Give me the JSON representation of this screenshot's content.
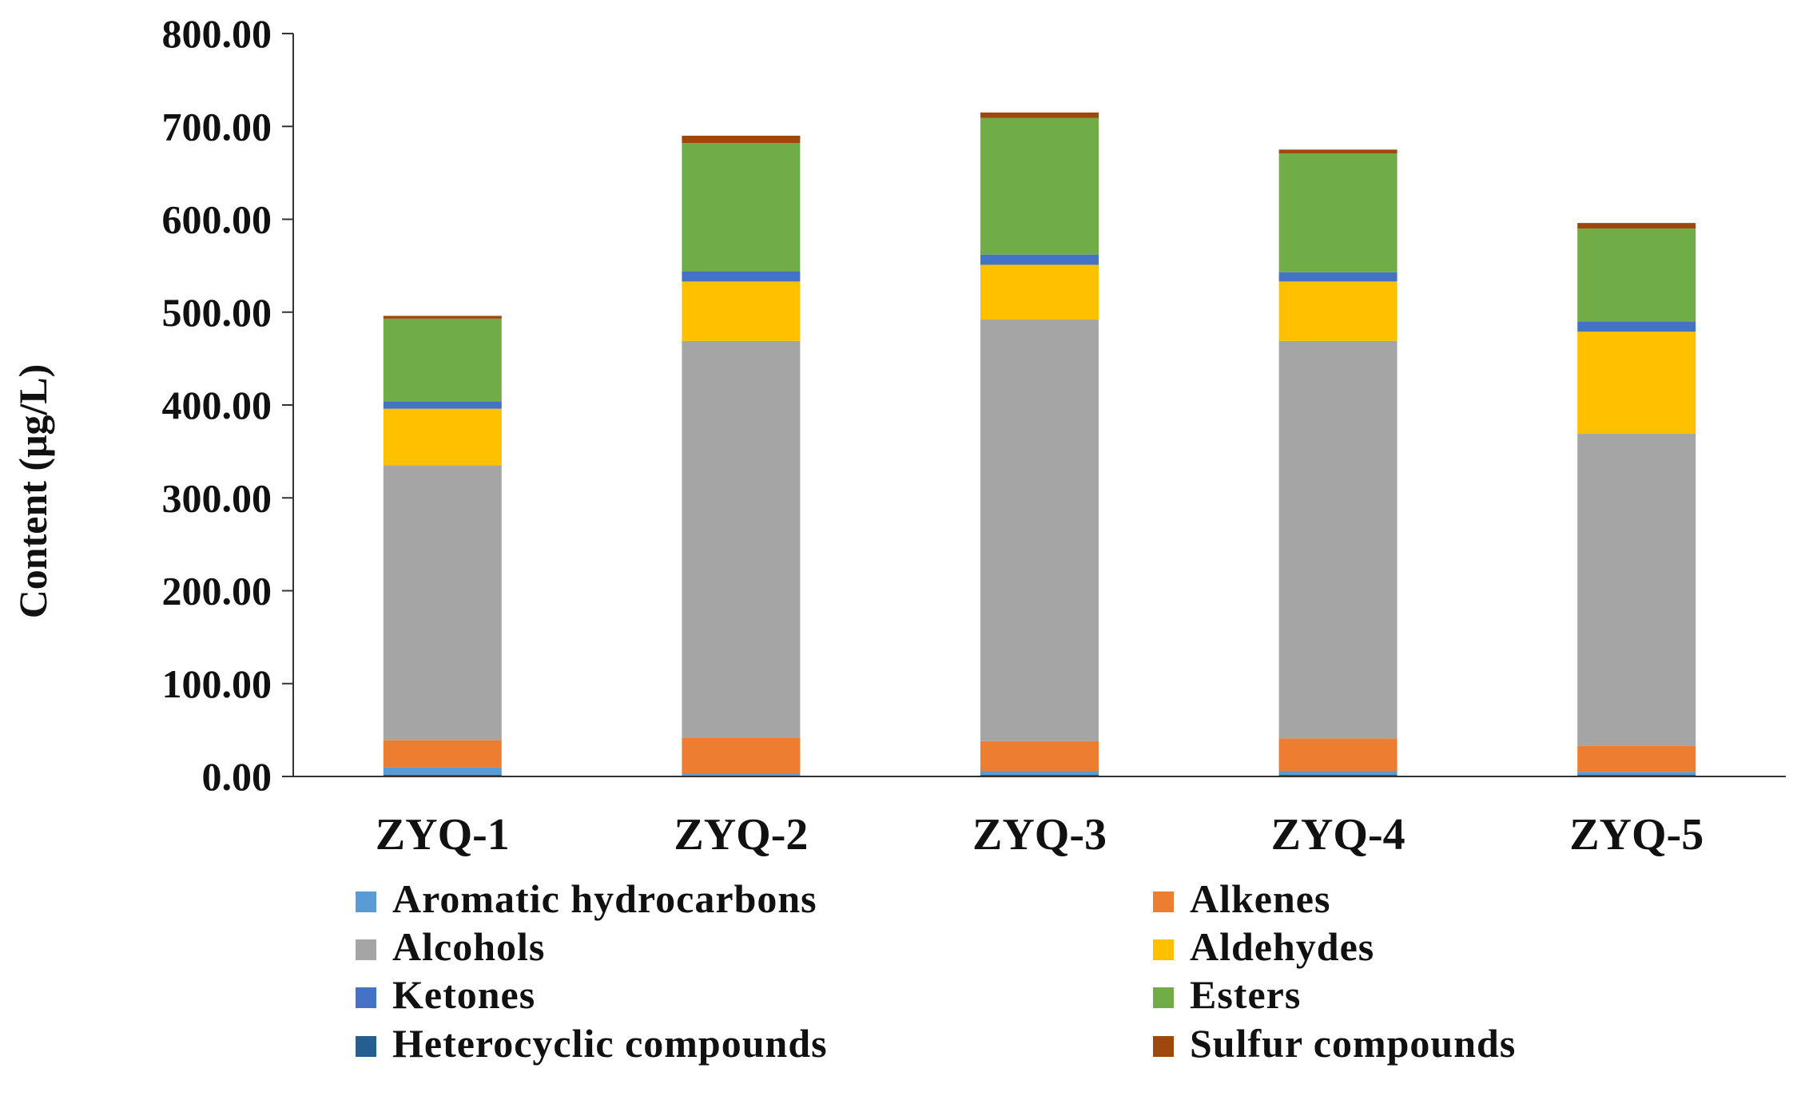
{
  "chart_data": {
    "type": "bar",
    "stacked": true,
    "title": "",
    "xlabel": "",
    "ylabel": "Content (μg/L)",
    "ylim": [
      0,
      800
    ],
    "yticks": [
      0,
      100,
      200,
      300,
      400,
      500,
      600,
      700,
      800
    ],
    "ytick_labels": [
      "0.00",
      "100.00",
      "200.00",
      "300.00",
      "400.00",
      "500.00",
      "600.00",
      "700.00",
      "800.00"
    ],
    "categories": [
      "ZYQ-1",
      "ZYQ-2",
      "ZYQ-3",
      "ZYQ-4",
      "ZYQ-5"
    ],
    "legend_position": "bottom",
    "series": [
      {
        "name": "Heterocyclic compounds",
        "color": "#255E91",
        "values": [
          2,
          1,
          2,
          2,
          2
        ]
      },
      {
        "name": "Aromatic hydrocarbons",
        "color": "#5B9BD5",
        "values": [
          8,
          2,
          4,
          4,
          3
        ]
      },
      {
        "name": "Alkenes",
        "color": "#ED7D31",
        "values": [
          29,
          39,
          32,
          35,
          28
        ]
      },
      {
        "name": "Alcohols",
        "color": "#A5A5A5",
        "values": [
          296,
          427,
          454,
          428,
          336
        ]
      },
      {
        "name": "Aldehydes",
        "color": "#FFC000",
        "values": [
          61,
          64,
          59,
          64,
          110
        ]
      },
      {
        "name": "Ketones",
        "color": "#4472C4",
        "values": [
          8,
          11,
          11,
          10,
          11
        ]
      },
      {
        "name": "Esters",
        "color": "#70AD47",
        "values": [
          89,
          138,
          147,
          128,
          100
        ]
      },
      {
        "name": "Sulfur compounds",
        "color": "#9E480E",
        "values": [
          3,
          8,
          6,
          4,
          6
        ]
      }
    ],
    "legend_order": [
      "Aromatic hydrocarbons",
      "Alkenes",
      "Alcohols",
      "Aldehydes",
      "Ketones",
      "Esters",
      "Heterocyclic compounds",
      "Sulfur compounds"
    ]
  }
}
